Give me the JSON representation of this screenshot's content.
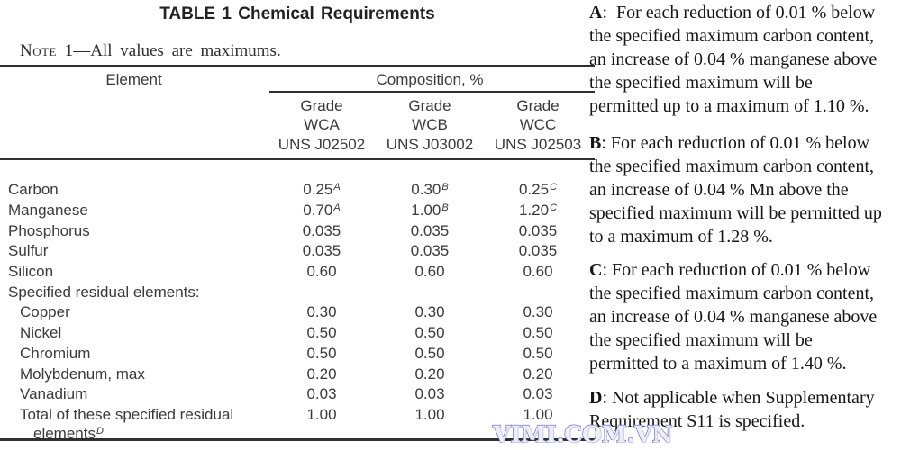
{
  "title": "TABLE 1 Chemical Requirements",
  "note": {
    "label": "Note",
    "text": " 1—All values are maximums."
  },
  "table": {
    "element_header": "Element",
    "composition_header": "Composition, %",
    "grades": [
      {
        "rows": [
          "Grade",
          "WCA",
          "UNS J02502"
        ]
      },
      {
        "rows": [
          "Grade",
          "WCB",
          "UNS J03002"
        ]
      },
      {
        "rows": [
          "Grade",
          "WCC",
          "UNS J02503"
        ]
      }
    ],
    "rows": [
      {
        "element": "Carbon",
        "indent": false,
        "cells": [
          {
            "text": "0.25",
            "sup": "A"
          },
          {
            "text": "0.30",
            "sup": "B"
          },
          {
            "text": "0.25",
            "sup": "C"
          }
        ]
      },
      {
        "element": "Manganese",
        "indent": false,
        "cells": [
          {
            "text": "0.70",
            "sup": "A"
          },
          {
            "text": "1.00",
            "sup": "B"
          },
          {
            "text": "1.20",
            "sup": "C"
          }
        ]
      },
      {
        "element": "Phosphorus",
        "indent": false,
        "cells": [
          {
            "text": "0.035"
          },
          {
            "text": "0.035"
          },
          {
            "text": "0.035"
          }
        ]
      },
      {
        "element": "Sulfur",
        "indent": false,
        "cells": [
          {
            "text": "0.035"
          },
          {
            "text": "0.035"
          },
          {
            "text": "0.035"
          }
        ]
      },
      {
        "element": "Silicon",
        "indent": false,
        "cells": [
          {
            "text": "0.60"
          },
          {
            "text": "0.60"
          },
          {
            "text": "0.60"
          }
        ]
      },
      {
        "element": "Specified residual elements:",
        "indent": false,
        "cells": [
          {
            "text": ""
          },
          {
            "text": ""
          },
          {
            "text": ""
          }
        ]
      },
      {
        "element": "Copper",
        "indent": true,
        "cells": [
          {
            "text": "0.30"
          },
          {
            "text": "0.30"
          },
          {
            "text": "0.30"
          }
        ]
      },
      {
        "element": "Nickel",
        "indent": true,
        "cells": [
          {
            "text": "0.50"
          },
          {
            "text": "0.50"
          },
          {
            "text": "0.50"
          }
        ]
      },
      {
        "element": "Chromium",
        "indent": true,
        "cells": [
          {
            "text": "0.50"
          },
          {
            "text": "0.50"
          },
          {
            "text": "0.50"
          }
        ]
      },
      {
        "element": "Molybdenum, max",
        "indent": true,
        "cells": [
          {
            "text": "0.20"
          },
          {
            "text": "0.20"
          },
          {
            "text": "0.20"
          }
        ]
      },
      {
        "element": "Vanadium",
        "indent": true,
        "cells": [
          {
            "text": "0.03"
          },
          {
            "text": "0.03"
          },
          {
            "text": "0.03"
          }
        ]
      },
      {
        "element_lines": [
          "Total of these specified residual",
          "elements"
        ],
        "element_sup": "D",
        "indent": true,
        "cells": [
          {
            "text": "1.00"
          },
          {
            "text": "1.00"
          },
          {
            "text": "1.00"
          }
        ]
      }
    ]
  },
  "footnotes": [
    {
      "label": "A",
      "sep": ":  ",
      "lines": [
        "For each reduction of 0.01 % below",
        "the specified maximum carbon content,",
        "an increase of 0.04 % manganese above",
        "the specified maximum will be",
        "permitted up to a maximum of 1.10 %."
      ]
    },
    {
      "label": "B",
      "sep": ": ",
      "lines": [
        "For each reduction of 0.01 % below",
        "the specified maximum carbon content,",
        "an increase of 0.04 % Mn above the",
        "specified maximum will be permitted up",
        "to a maximum of 1.28 %."
      ]
    },
    {
      "label": "C",
      "sep": ": ",
      "lines": [
        "For each reduction of 0.01 % below",
        "the specified maximum carbon content,",
        "an increase of 0.04 % manganese above",
        "the specified maximum will be",
        "permitted to a maximum of 1.40 %."
      ]
    },
    {
      "label": "D",
      "sep": ": ",
      "lines": [
        "Not applicable when Supplementary",
        "Requirement S11 is specified."
      ]
    }
  ],
  "watermark": {
    "text": "VIMI.COM.VN",
    "color": "#5b5fc5"
  }
}
